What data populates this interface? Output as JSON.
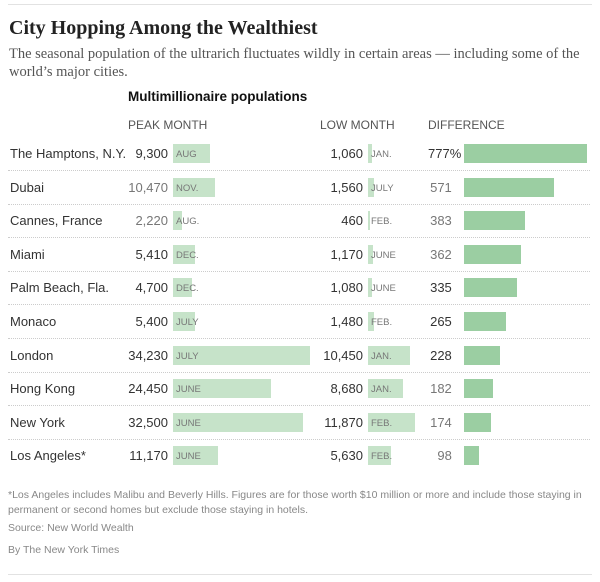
{
  "title": "City Hopping Among the Wealthiest",
  "subtitle": "The seasonal population of the ultrarich fluctuates wildly in certain areas — including some of the world’s major cities.",
  "colors": {
    "peak_low_bar": "#c6e3c9",
    "difference_bar": "#9bcea2"
  },
  "chart_data": {
    "type": "table",
    "title": "Multimillionaire populations",
    "columns": [
      "PEAK MONTH",
      "LOW MONTH",
      "DIFFERENCE"
    ],
    "rows": [
      {
        "city": "The Hamptons, N.Y.",
        "peak": 9300,
        "peak_label": "9,300",
        "peak_month": "AUG",
        "low": 1060,
        "low_label": "1,060",
        "low_month": "JAN.",
        "diff": 777,
        "diff_label": "777%"
      },
      {
        "city": "Dubai",
        "peak": 10470,
        "peak_label": "10,470",
        "peak_month": "NOV.",
        "low": 1560,
        "low_label": "1,560",
        "low_month": "JULY",
        "diff": 571,
        "diff_label": "571"
      },
      {
        "city": "Cannes, France",
        "peak": 2220,
        "peak_label": "2,220",
        "peak_month": "AUG.",
        "low": 460,
        "low_label": "460",
        "low_month": "FEB.",
        "diff": 383,
        "diff_label": "383"
      },
      {
        "city": "Miami",
        "peak": 5410,
        "peak_label": "5,410",
        "peak_month": "DEC.",
        "low": 1170,
        "low_label": "1,170",
        "low_month": "JUNE",
        "diff": 362,
        "diff_label": "362"
      },
      {
        "city": "Palm Beach, Fla.",
        "peak": 4700,
        "peak_label": "4,700",
        "peak_month": "DEC.",
        "low": 1080,
        "low_label": "1,080",
        "low_month": "JUNE",
        "diff": 335,
        "diff_label": "335"
      },
      {
        "city": "Monaco",
        "peak": 5400,
        "peak_label": "5,400",
        "peak_month": "JULY",
        "low": 1480,
        "low_label": "1,480",
        "low_month": "FEB.",
        "diff": 265,
        "diff_label": "265"
      },
      {
        "city": "London",
        "peak": 34230,
        "peak_label": "34,230",
        "peak_month": "JULY",
        "low": 10450,
        "low_label": "10,450",
        "low_month": "JAN.",
        "diff": 228,
        "diff_label": "228"
      },
      {
        "city": "Hong Kong",
        "peak": 24450,
        "peak_label": "24,450",
        "peak_month": "JUNE",
        "low": 8680,
        "low_label": "8,680",
        "low_month": "JAN.",
        "diff": 182,
        "diff_label": "182"
      },
      {
        "city": "New York",
        "peak": 32500,
        "peak_label": "32,500",
        "peak_month": "JUNE",
        "low": 11870,
        "low_label": "11,870",
        "low_month": "FEB.",
        "diff": 174,
        "diff_label": "174"
      },
      {
        "city": "Los Angeles*",
        "peak": 11170,
        "peak_label": "11,170",
        "peak_month": "JUNE",
        "low": 5630,
        "low_label": "5,630",
        "low_month": "FEB.",
        "diff": 98,
        "diff_label": "98"
      }
    ]
  },
  "footnote": "*Los Angeles includes Malibu and Beverly Hills. Figures are for those worth $10 million or more and include those staying in permanent or second homes but exclude those staying in hotels.",
  "source": "Source: New World Wealth",
  "credit": "By The New York Times"
}
